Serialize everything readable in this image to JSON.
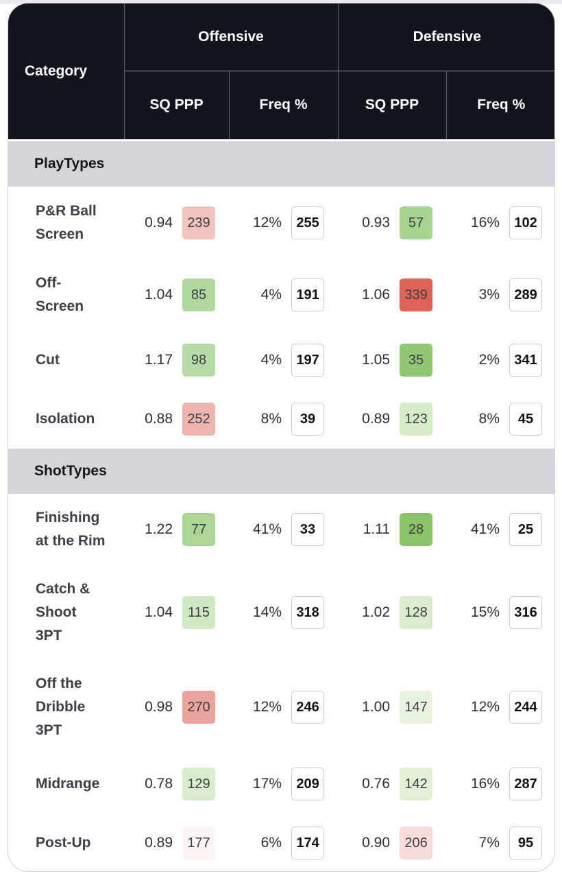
{
  "table": {
    "header": {
      "category": "Category",
      "groups": [
        "Offensive",
        "Defensive"
      ],
      "subcolumns": [
        "SQ PPP",
        "Freq %",
        "SQ PPP",
        "Freq %"
      ]
    },
    "sections": [
      {
        "title": "PlayTypes",
        "rows": [
          {
            "label": "P&R Ball Screen",
            "lines": [
              "P&R Ball",
              "Screen"
            ],
            "height": 106,
            "off_ppp": "0.94",
            "off_ppp_rank": "239",
            "off_ppp_rank_color": "#f2c4c0",
            "off_freq": "12%",
            "off_freq_rank": "255",
            "def_ppp": "0.93",
            "def_ppp_rank": "57",
            "def_ppp_rank_color": "#a6d48f",
            "def_freq": "16%",
            "def_freq_rank": "102"
          },
          {
            "label": "Off-Screen",
            "lines": [
              "Off-",
              "Screen"
            ],
            "height": 104,
            "off_ppp": "1.04",
            "off_ppp_rank": "85",
            "off_ppp_rank_color": "#b0d89d",
            "off_freq": "4%",
            "off_freq_rank": "191",
            "def_ppp": "1.06",
            "def_ppp_rank": "339",
            "def_ppp_rank_color": "#de6456",
            "def_freq": "3%",
            "def_freq_rank": "289"
          },
          {
            "label": "Cut",
            "lines": [
              "Cut"
            ],
            "height": 86,
            "off_ppp": "1.17",
            "off_ppp_rank": "98",
            "off_ppp_rank_color": "#b7dba4",
            "off_freq": "4%",
            "off_freq_rank": "197",
            "def_ppp": "1.05",
            "def_ppp_rank": "35",
            "def_ppp_rank_color": "#8fc772",
            "def_freq": "2%",
            "def_freq_rank": "341"
          },
          {
            "label": "Isolation",
            "lines": [
              "Isolation"
            ],
            "height": 86,
            "off_ppp": "0.88",
            "off_ppp_rank": "252",
            "off_ppp_rank_color": "#eeb4ae",
            "off_freq": "8%",
            "off_freq_rank": "39",
            "def_ppp": "0.89",
            "def_ppp_rank": "123",
            "def_ppp_rank_color": "#d7ecc9",
            "def_freq": "8%",
            "def_freq_rank": "45"
          }
        ]
      },
      {
        "title": "ShotTypes",
        "rows": [
          {
            "label": "Finishing at the Rim",
            "lines": [
              "Finishing",
              "at the Rim"
            ],
            "height": 104,
            "off_ppp": "1.22",
            "off_ppp_rank": "77",
            "off_ppp_rank_color": "#acd698",
            "off_freq": "41%",
            "off_freq_rank": "33",
            "def_ppp": "1.11",
            "def_ppp_rank": "28",
            "def_ppp_rank_color": "#89c46b",
            "def_freq": "41%",
            "def_freq_rank": "25"
          },
          {
            "label": "Catch & Shoot 3PT",
            "lines": [
              "Catch &",
              "Shoot",
              "3PT"
            ],
            "height": 138,
            "off_ppp": "1.04",
            "off_ppp_rank": "115",
            "off_ppp_rank_color": "#d1e9c3",
            "off_freq": "14%",
            "off_freq_rank": "318",
            "def_ppp": "1.02",
            "def_ppp_rank": "128",
            "def_ppp_rank_color": "#d9eccd",
            "def_freq": "15%",
            "def_freq_rank": "316"
          },
          {
            "label": "Off the Dribble 3PT",
            "lines": [
              "Off the",
              "Dribble",
              "3PT"
            ],
            "height": 138,
            "off_ppp": "0.98",
            "off_ppp_rank": "270",
            "off_ppp_rank_color": "#eaa49d",
            "off_freq": "12%",
            "off_freq_rank": "246",
            "def_ppp": "1.00",
            "def_ppp_rank": "147",
            "def_ppp_rank_color": "#e6f2dd",
            "def_freq": "12%",
            "def_freq_rank": "244"
          },
          {
            "label": "Midrange",
            "lines": [
              "Midrange"
            ],
            "height": 86,
            "off_ppp": "0.78",
            "off_ppp_rank": "129",
            "off_ppp_rank_color": "#d9eccd",
            "off_freq": "17%",
            "off_freq_rank": "209",
            "def_ppp": "0.76",
            "def_ppp_rank": "142",
            "def_ppp_rank_color": "#e2f0d7",
            "def_freq": "16%",
            "def_freq_rank": "287"
          },
          {
            "label": "Post-Up",
            "lines": [
              "Post-Up"
            ],
            "height": 86,
            "off_ppp": "0.89",
            "off_ppp_rank": "177",
            "off_ppp_rank_color": "#fcf4f3",
            "off_freq": "6%",
            "off_freq_rank": "174",
            "def_ppp": "0.90",
            "def_ppp_rank": "206",
            "def_ppp_rank_color": "#f8dcd9",
            "def_freq": "7%",
            "def_freq_rank": "95"
          }
        ]
      }
    ]
  }
}
